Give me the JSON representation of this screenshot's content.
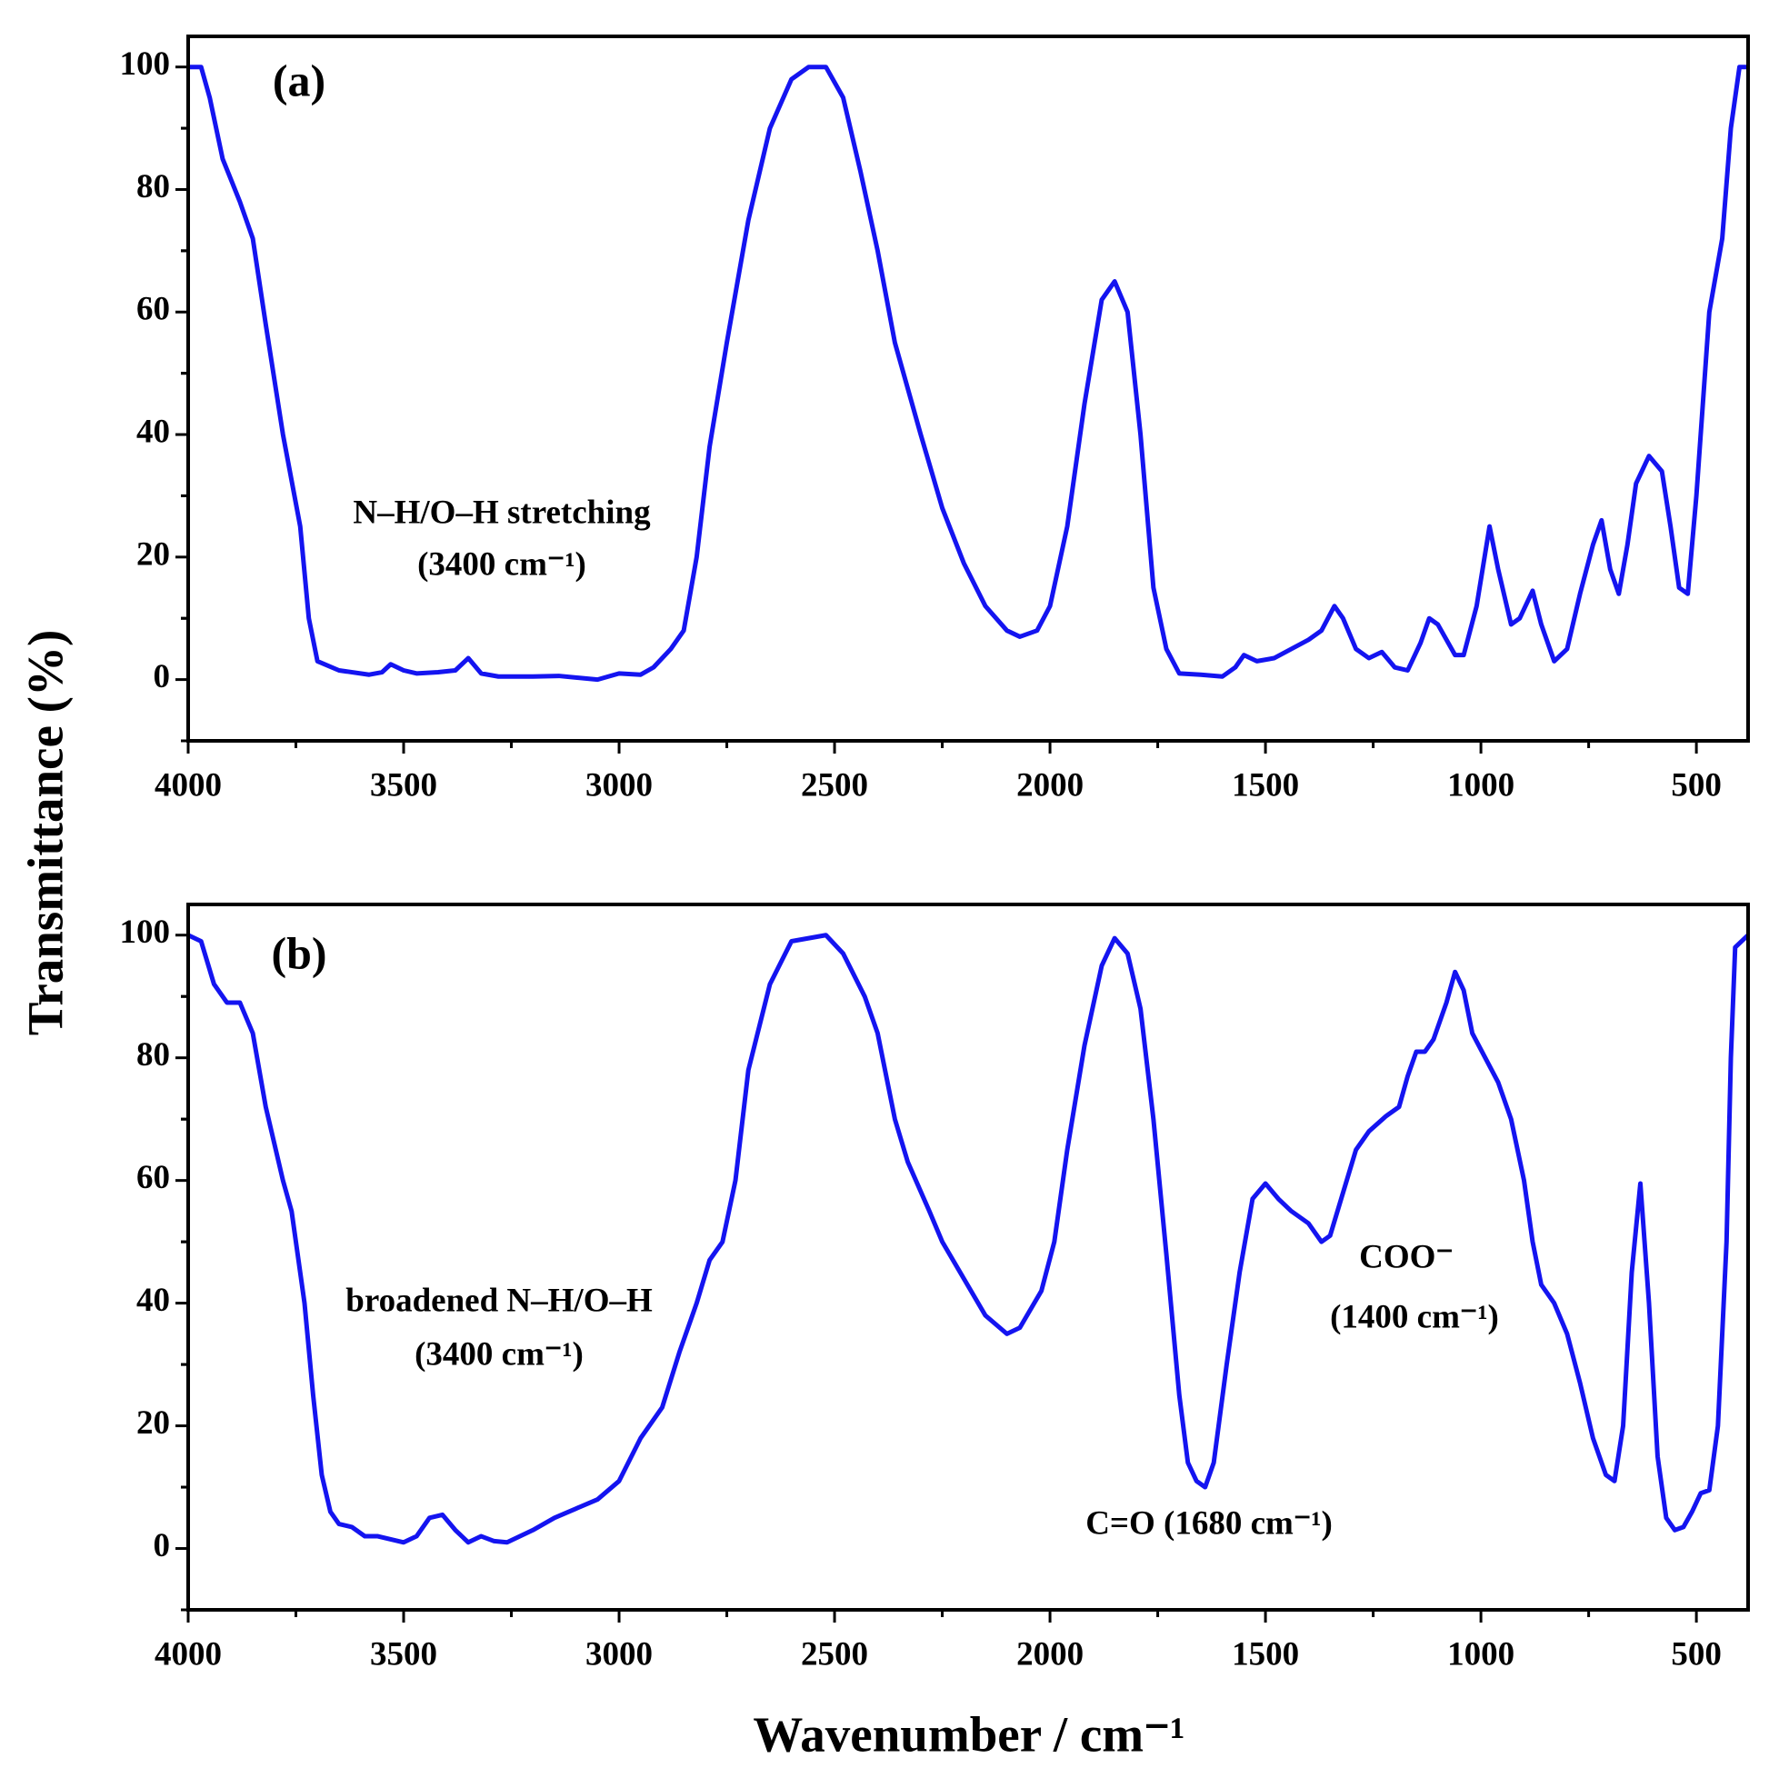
{
  "chart_data": [
    {
      "type": "line",
      "panel_label": "(a)",
      "ylabel": "Transmittance (%)",
      "annotations": [
        "N–H/O–H stretching",
        "(3400 cm⁻¹)"
      ],
      "xlim": [
        4000,
        380
      ],
      "xticks": [
        4000,
        3500,
        3000,
        2500,
        2000,
        1500,
        1000,
        500
      ],
      "ylim": [
        -10,
        105
      ],
      "yticks": [
        0,
        20,
        40,
        60,
        80,
        100
      ],
      "color": "#1414f0",
      "x": [
        4000,
        3970,
        3950,
        3920,
        3880,
        3850,
        3820,
        3780,
        3740,
        3720,
        3700,
        3650,
        3580,
        3550,
        3530,
        3500,
        3470,
        3420,
        3380,
        3350,
        3320,
        3280,
        3200,
        3140,
        3050,
        3000,
        2950,
        2920,
        2880,
        2850,
        2820,
        2790,
        2750,
        2700,
        2650,
        2600,
        2560,
        2520,
        2480,
        2440,
        2400,
        2360,
        2300,
        2250,
        2200,
        2150,
        2100,
        2070,
        2030,
        2000,
        1960,
        1920,
        1880,
        1850,
        1820,
        1790,
        1760,
        1730,
        1700,
        1650,
        1600,
        1570,
        1550,
        1520,
        1480,
        1440,
        1400,
        1370,
        1340,
        1320,
        1290,
        1260,
        1230,
        1200,
        1170,
        1140,
        1120,
        1100,
        1060,
        1040,
        1010,
        980,
        960,
        930,
        910,
        880,
        860,
        830,
        800,
        770,
        740,
        720,
        700,
        680,
        660,
        640,
        610,
        580,
        560,
        540,
        520,
        500,
        470,
        440,
        420,
        400,
        380
      ],
      "values": [
        100,
        100,
        95,
        85,
        78,
        72,
        58,
        40,
        25,
        10,
        3,
        1.5,
        0.8,
        1.2,
        2.5,
        1.5,
        1,
        1.2,
        1.5,
        3.5,
        1,
        0.5,
        0.5,
        0.6,
        0,
        1,
        0.8,
        2,
        5,
        8,
        20,
        38,
        55,
        75,
        90,
        98,
        100,
        100,
        95,
        83,
        70,
        55,
        40,
        28,
        19,
        12,
        8,
        7,
        8,
        12,
        25,
        45,
        62,
        65,
        60,
        40,
        15,
        5,
        1,
        0.8,
        0.5,
        2,
        4,
        3,
        3.5,
        5,
        6.5,
        8,
        12,
        10,
        5,
        3.5,
        4.5,
        2,
        1.5,
        6,
        10,
        9,
        4,
        4,
        12,
        25,
        18,
        9,
        10,
        14.5,
        9,
        3,
        5,
        14,
        22,
        26,
        18,
        14,
        22,
        32,
        36.5,
        34,
        25,
        15,
        14,
        30,
        60,
        72,
        90,
        100,
        100
      ]
    },
    {
      "type": "line",
      "panel_label": "(b)",
      "xlabel": "Wavenumber / cm⁻¹",
      "annotations": [
        "broadened N–H/O–H",
        "(3400 cm⁻¹)",
        "COO⁻",
        "(1400 cm⁻¹)",
        "C=O (1680 cm⁻¹)"
      ],
      "xlim": [
        4000,
        380
      ],
      "xticks": [
        4000,
        3500,
        3000,
        2500,
        2000,
        1500,
        1000,
        500
      ],
      "ylim": [
        -10,
        105
      ],
      "yticks": [
        0,
        20,
        40,
        60,
        80,
        100
      ],
      "color": "#1414f0",
      "x": [
        4000,
        3970,
        3940,
        3910,
        3880,
        3850,
        3820,
        3780,
        3760,
        3730,
        3710,
        3690,
        3670,
        3650,
        3620,
        3590,
        3560,
        3530,
        3500,
        3470,
        3440,
        3410,
        3380,
        3350,
        3320,
        3290,
        3260,
        3200,
        3150,
        3100,
        3050,
        3000,
        2950,
        2900,
        2860,
        2820,
        2790,
        2760,
        2730,
        2700,
        2650,
        2600,
        2560,
        2520,
        2480,
        2430,
        2400,
        2360,
        2330,
        2280,
        2250,
        2200,
        2150,
        2100,
        2070,
        2020,
        1990,
        1960,
        1920,
        1880,
        1850,
        1820,
        1790,
        1760,
        1730,
        1700,
        1680,
        1660,
        1640,
        1620,
        1590,
        1560,
        1530,
        1500,
        1470,
        1440,
        1400,
        1370,
        1350,
        1320,
        1290,
        1260,
        1220,
        1190,
        1170,
        1150,
        1130,
        1110,
        1080,
        1060,
        1040,
        1020,
        990,
        960,
        930,
        900,
        880,
        860,
        830,
        800,
        770,
        740,
        710,
        690,
        670,
        650,
        630,
        610,
        590,
        570,
        550,
        530,
        510,
        490,
        470,
        450,
        430,
        420,
        410,
        380
      ],
      "values": [
        100,
        99,
        92,
        89,
        89,
        84,
        72,
        60,
        55,
        40,
        25,
        12,
        6,
        4,
        3.5,
        2,
        2,
        1.5,
        1,
        2,
        5,
        5.5,
        3,
        1,
        2,
        1.2,
        1,
        3,
        5,
        6.5,
        8,
        11,
        18,
        23,
        32,
        40,
        47,
        50,
        60,
        78,
        92,
        99,
        99.5,
        100,
        97,
        90,
        84,
        70,
        63,
        55,
        50,
        44,
        38,
        35,
        36,
        42,
        50,
        65,
        82,
        95,
        99.5,
        97,
        88,
        70,
        48,
        25,
        14,
        11,
        10,
        14,
        30,
        45,
        57,
        59.5,
        57,
        55,
        53,
        50,
        51,
        58,
        65,
        68,
        70.5,
        72,
        77,
        81,
        81,
        83,
        89,
        94,
        91,
        84,
        80,
        76,
        70,
        60,
        50,
        43,
        40,
        35,
        27,
        18,
        12,
        11,
        20,
        45,
        59.5,
        40,
        15,
        5,
        3,
        3.5,
        6,
        9,
        9.5,
        20,
        50,
        80,
        98,
        100
      ]
    }
  ]
}
